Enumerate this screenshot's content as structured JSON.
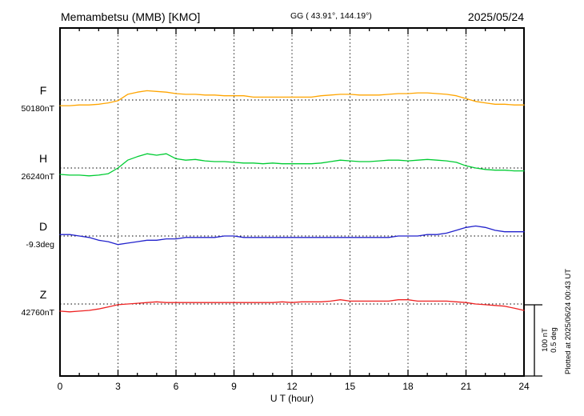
{
  "header": {
    "title": "Memambetsu (MMB)  [KMO]",
    "coords": "GG ( 43.91°, 144.19°)",
    "date": "2025/05/24"
  },
  "axis": {
    "xlabel": "U T (hour)",
    "tick_hours": [
      0,
      3,
      6,
      9,
      12,
      15,
      18,
      21,
      24
    ],
    "x_range": [
      0,
      24
    ]
  },
  "scale": {
    "nt": "100 nT",
    "deg": "0.5 deg"
  },
  "footer": {
    "plotted_at": "Plotted at 2025/06/24 00:43 UT"
  },
  "chart_data": {
    "type": "line",
    "title": "Memambetsu (MMB) [KMO] magnetogram 2025/05/24",
    "xlabel": "U T (hour)",
    "x_start": 0,
    "x_step": 0.5,
    "x_range": [
      0,
      24
    ],
    "grid": "dotted vertical every 3 hours, dotted horizontal baseline per trace",
    "scale_reference": {
      "nT_per_bar": 100,
      "deg_per_bar": 0.5
    },
    "series": [
      {
        "name": "F",
        "unit": "nT",
        "baseline_value": 50180,
        "baseline_label": "50180nT",
        "color": "#ffa500",
        "offsets": [
          -8,
          -8,
          -7,
          -7,
          -6,
          -4,
          -1,
          8,
          11,
          13,
          12,
          11,
          9,
          8,
          8,
          7,
          7,
          6,
          6,
          6,
          4,
          4,
          4,
          4,
          4,
          4,
          4,
          6,
          7,
          8,
          8,
          7,
          7,
          7,
          8,
          9,
          9,
          10,
          10,
          9,
          8,
          6,
          2,
          -2,
          -4,
          -6,
          -6,
          -7,
          -7
        ]
      },
      {
        "name": "H",
        "unit": "nT",
        "baseline_value": 26240,
        "baseline_label": "26240nT",
        "color": "#00cc33",
        "offsets": [
          -9,
          -10,
          -10,
          -11,
          -10,
          -8,
          0,
          11,
          16,
          20,
          18,
          20,
          13,
          11,
          12,
          10,
          9,
          9,
          8,
          7,
          7,
          6,
          7,
          6,
          6,
          6,
          6,
          7,
          9,
          11,
          10,
          9,
          9,
          10,
          11,
          11,
          10,
          11,
          12,
          11,
          10,
          8,
          3,
          0,
          -2,
          -3,
          -3,
          -4,
          -4
        ]
      },
      {
        "name": "D",
        "unit": "deg",
        "baseline_value": -9.3,
        "baseline_label": "-9.3deg",
        "color": "#2222cc",
        "offsets": [
          0.01,
          0.01,
          0.0,
          -0.01,
          -0.03,
          -0.04,
          -0.06,
          -0.05,
          -0.04,
          -0.03,
          -0.03,
          -0.02,
          -0.02,
          -0.01,
          -0.01,
          -0.01,
          -0.01,
          0.0,
          0.0,
          -0.01,
          -0.01,
          -0.01,
          -0.01,
          -0.01,
          -0.01,
          -0.01,
          -0.01,
          -0.01,
          -0.01,
          -0.01,
          -0.01,
          -0.01,
          -0.01,
          -0.01,
          -0.01,
          0.0,
          0.0,
          0.0,
          0.01,
          0.01,
          0.02,
          0.04,
          0.06,
          0.07,
          0.06,
          0.04,
          0.03,
          0.03,
          0.03
        ]
      },
      {
        "name": "Z",
        "unit": "nT",
        "baseline_value": 42760,
        "baseline_label": "42760nT",
        "color": "#ee2222",
        "offsets": [
          -10,
          -11,
          -10,
          -9,
          -7,
          -4,
          -1,
          0,
          1,
          2,
          3,
          2,
          2,
          2,
          2,
          2,
          2,
          2,
          2,
          2,
          2,
          2,
          2,
          3,
          2,
          3,
          3,
          3,
          4,
          6,
          4,
          4,
          4,
          4,
          4,
          6,
          6,
          4,
          4,
          4,
          4,
          3,
          2,
          0,
          -1,
          -2,
          -3,
          -6,
          -9
        ]
      }
    ]
  }
}
